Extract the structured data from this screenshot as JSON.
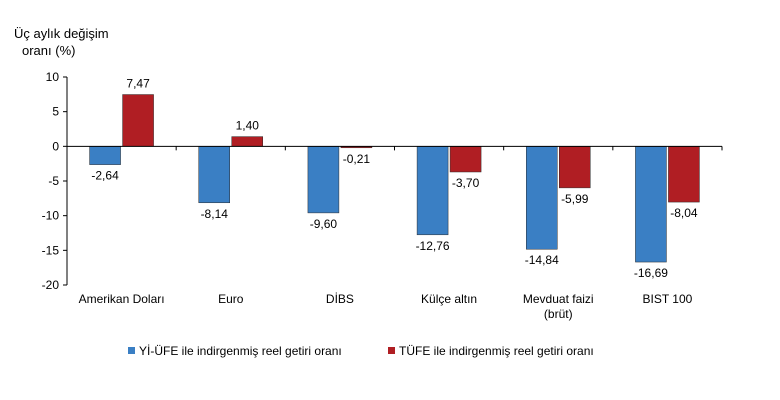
{
  "chart_data": {
    "type": "bar",
    "ylabel_lines": [
      "Üç aylık değişim",
      "oranı (%)"
    ],
    "ylim": [
      -20,
      10
    ],
    "yticks": [
      10,
      5,
      0,
      -5,
      -10,
      -15,
      -20
    ],
    "categories": [
      [
        "Amerikan Doları"
      ],
      [
        "Euro"
      ],
      [
        "DİBS"
      ],
      [
        "Külçe altın"
      ],
      [
        "Mevduat faizi",
        "(brüt)"
      ],
      [
        "BIST 100"
      ]
    ],
    "series": [
      {
        "name": "Yİ-ÜFE ile indirgenmiş reel getiri oranı",
        "color": "#3a7fc4",
        "values": [
          -2.64,
          -8.14,
          -9.6,
          -12.76,
          -14.84,
          -16.69
        ],
        "labels": [
          "-2,64",
          "-8,14",
          "-9,60",
          "-12,76",
          "-14,84",
          "-16,69"
        ]
      },
      {
        "name": "TÜFE ile indirgenmiş reel getiri oranı",
        "color": "#b01e23",
        "values": [
          7.47,
          1.4,
          -0.21,
          -3.7,
          -5.99,
          -8.04
        ],
        "labels": [
          "7,47",
          "1,40",
          "-0,21",
          "-3,70",
          "-5,99",
          "-8,04"
        ]
      }
    ],
    "grid": false,
    "legend_position": "bottom"
  }
}
